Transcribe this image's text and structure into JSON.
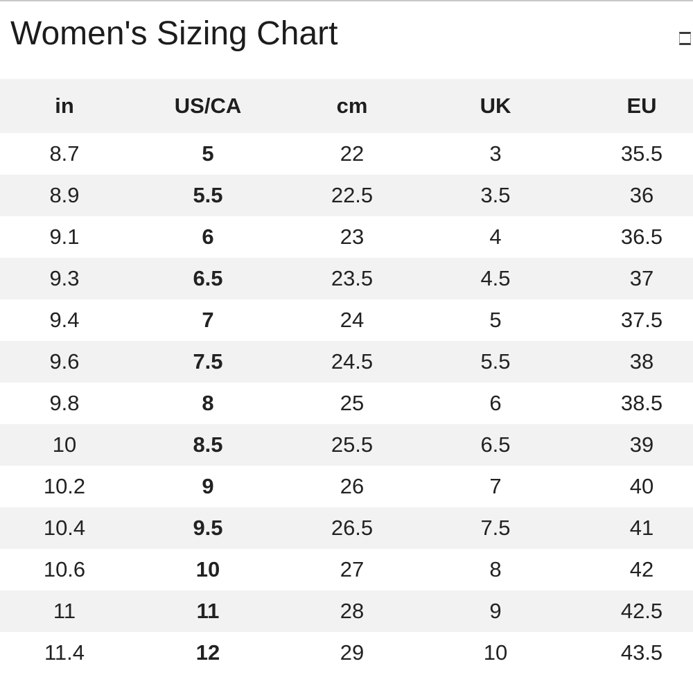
{
  "page": {
    "title": "Women's Sizing Chart"
  },
  "icons": {
    "top_right": "box-glyph-icon"
  },
  "colors": {
    "header_bg": "#f2f2f3",
    "row_alt_bg": "#f2f2f3",
    "row_bg": "#ffffff",
    "text": "#222222",
    "title_text": "#1c1c1c",
    "top_border": "#c8c8c8"
  },
  "chart_data": {
    "type": "table",
    "title": "Women's Sizing Chart",
    "columns": [
      "in",
      "US/CA",
      "cm",
      "UK",
      "EU"
    ],
    "bold_column": "US/CA",
    "zebra_striping": true,
    "rows": [
      [
        "8.7",
        "5",
        "22",
        "3",
        "35.5"
      ],
      [
        "8.9",
        "5.5",
        "22.5",
        "3.5",
        "36"
      ],
      [
        "9.1",
        "6",
        "23",
        "4",
        "36.5"
      ],
      [
        "9.3",
        "6.5",
        "23.5",
        "4.5",
        "37"
      ],
      [
        "9.4",
        "7",
        "24",
        "5",
        "37.5"
      ],
      [
        "9.6",
        "7.5",
        "24.5",
        "5.5",
        "38"
      ],
      [
        "9.8",
        "8",
        "25",
        "6",
        "38.5"
      ],
      [
        "10",
        "8.5",
        "25.5",
        "6.5",
        "39"
      ],
      [
        "10.2",
        "9",
        "26",
        "7",
        "40"
      ],
      [
        "10.4",
        "9.5",
        "26.5",
        "7.5",
        "41"
      ],
      [
        "10.6",
        "10",
        "27",
        "8",
        "42"
      ],
      [
        "11",
        "11",
        "28",
        "9",
        "42.5"
      ],
      [
        "11.4",
        "12",
        "29",
        "10",
        "43.5"
      ]
    ]
  }
}
